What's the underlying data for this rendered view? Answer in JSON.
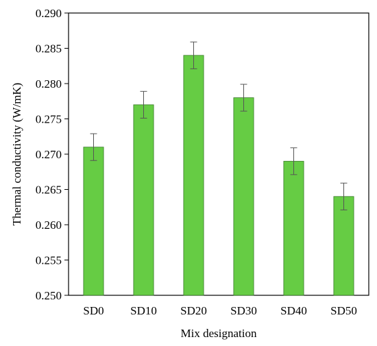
{
  "chart_data": {
    "type": "bar",
    "title": "",
    "xlabel": "Mix designation",
    "ylabel": "Thermal conductivity (W/mK)",
    "categories": [
      "SD0",
      "SD10",
      "SD20",
      "SD30",
      "SD40",
      "SD50"
    ],
    "values": [
      0.271,
      0.277,
      0.284,
      0.278,
      0.269,
      0.264
    ],
    "error": [
      0.0019,
      0.0019,
      0.0019,
      0.0019,
      0.0019,
      0.0019
    ],
    "ylim": [
      0.25,
      0.29
    ],
    "yticks": [
      "0.250",
      "0.255",
      "0.260",
      "0.265",
      "0.270",
      "0.275",
      "0.280",
      "0.285",
      "0.290"
    ],
    "grid": false,
    "legend": "none",
    "colors": {
      "bar_fill": "#66cc44",
      "bar_stroke": "#3a7a2a",
      "error_bar": "#555555",
      "axis": "#000000"
    }
  }
}
